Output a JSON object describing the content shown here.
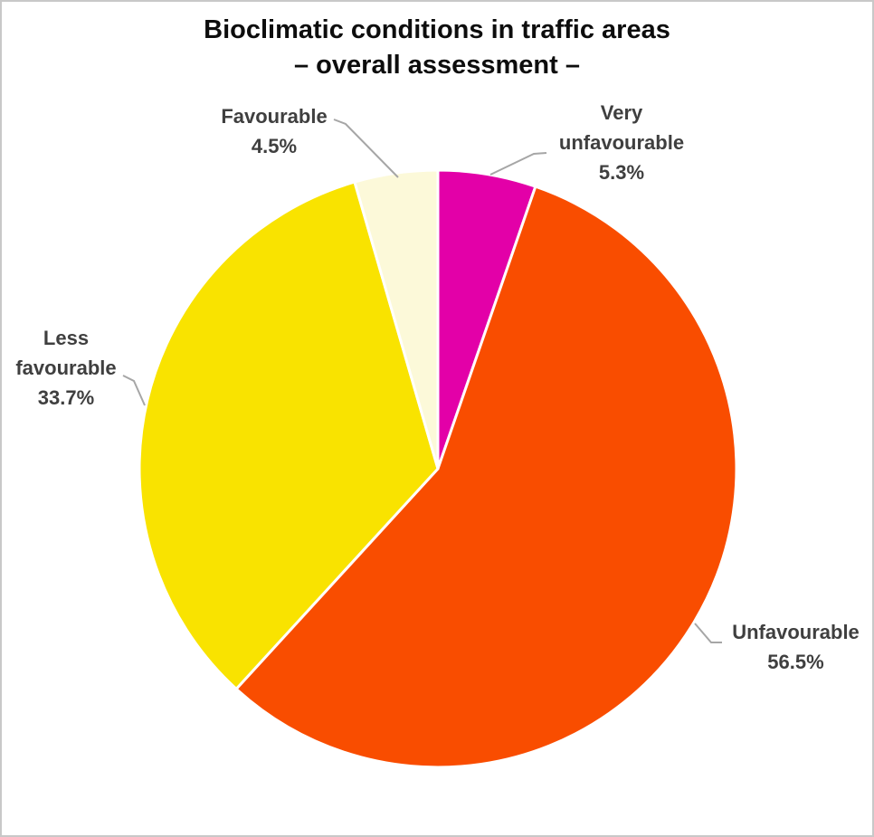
{
  "page": {
    "background": "#FFFFFF",
    "border_color": "#C8C8C8"
  },
  "chart_data": {
    "type": "pie",
    "title": "Bioclimatic conditions in traffic areas",
    "subtitle": "– overall assessment –",
    "direction": "clockwise",
    "start_angle_deg": 0,
    "legend": "none",
    "data_labels": "category name + percentage outside the pie, connected with gray leader lines",
    "slices": [
      {
        "label": "Very unfavourable",
        "value_pct": 5.3,
        "pct_label": "5.3%",
        "color": "#E300A8"
      },
      {
        "label": "Unfavourable",
        "value_pct": 56.5,
        "pct_label": "56.5%",
        "color": "#F94D00"
      },
      {
        "label": "Less favourable",
        "value_pct": 33.7,
        "pct_label": "33.7%",
        "color": "#F9E300"
      },
      {
        "label": "Favourable",
        "value_pct": 4.5,
        "pct_label": "4.5%",
        "color": "#FCF9D9"
      }
    ],
    "colors": {
      "title_text": "#0D0D0D",
      "label_text": "#3F3F3F",
      "leader_line": "#A6A6A6",
      "slice_border": "#FFFFFF"
    }
  }
}
